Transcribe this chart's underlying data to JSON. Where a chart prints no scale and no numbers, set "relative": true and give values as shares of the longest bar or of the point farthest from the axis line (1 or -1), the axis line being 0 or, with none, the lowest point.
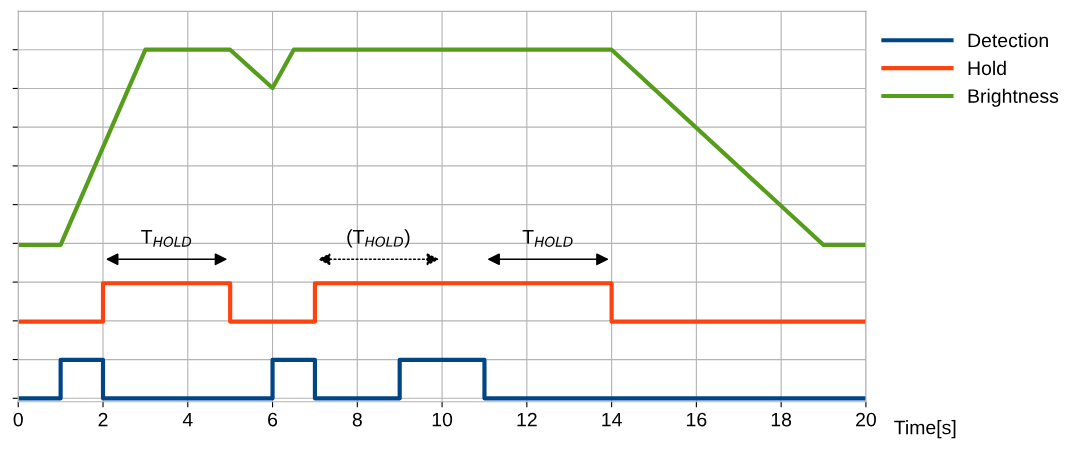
{
  "chart_data": {
    "type": "step",
    "relative": true,
    "xlabel": "Time[s]",
    "xlim": [
      0,
      20
    ],
    "xticks": [
      0,
      2,
      4,
      6,
      8,
      10,
      12,
      14,
      16,
      18,
      20
    ],
    "grid": true,
    "legend": "right",
    "tick_labels": "x",
    "series": [
      {
        "name": "Detection",
        "color": "#004586",
        "x": [
          0,
          1,
          2,
          6,
          7,
          9,
          11,
          20
        ],
        "values": [
          0,
          0.11,
          0,
          0.11,
          0,
          0.11,
          0,
          0
        ]
      },
      {
        "name": "Hold",
        "color": "#ff420e",
        "x": [
          0,
          2,
          5,
          7,
          14,
          20
        ],
        "values": [
          0.22,
          0.33,
          0.22,
          0.33,
          0.22,
          0.22
        ]
      },
      {
        "name": "Brightness",
        "color": "#579d1c",
        "type": "line",
        "x": [
          0,
          1,
          3,
          5,
          6,
          6.5,
          14,
          19,
          20
        ],
        "values": [
          0.44,
          0.44,
          1,
          1,
          0.89,
          1,
          1,
          0.44,
          0.44
        ]
      }
    ],
    "annotations": [
      "T$_{HOLD}$",
      "(T$_{HOLD}$)",
      "T$_{HOLD}$"
    ]
  }
}
